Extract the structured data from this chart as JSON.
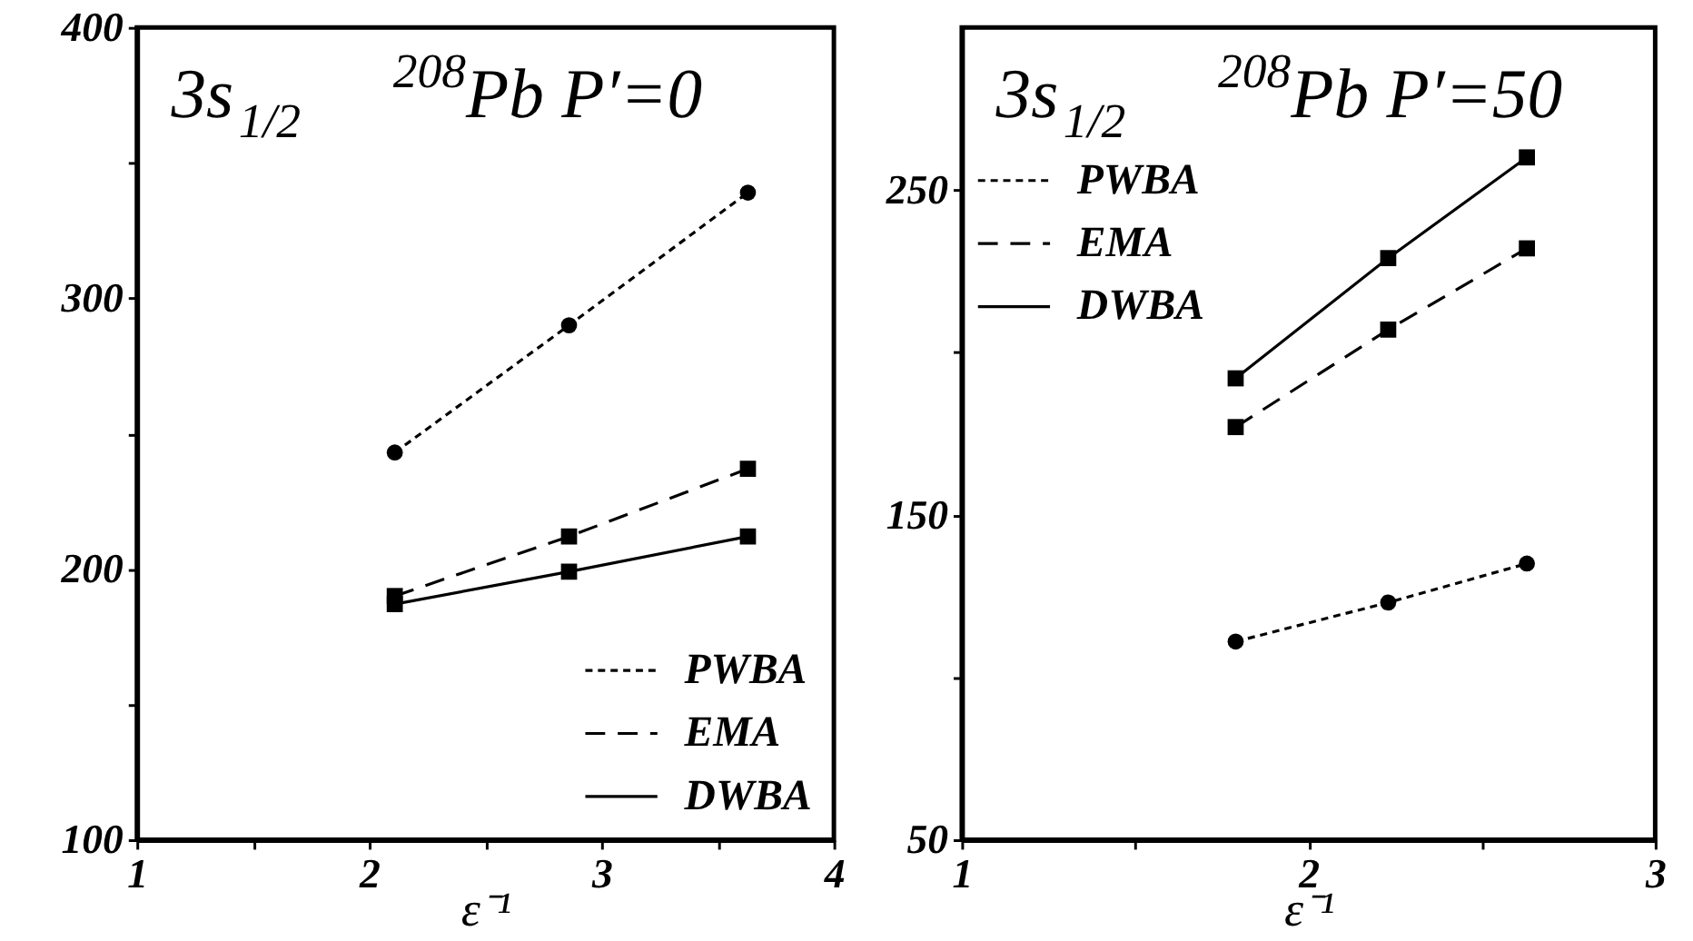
{
  "chart_data": [
    {
      "type": "line",
      "title": "3s$_{1/2}$ $^{208}$Pb P′=0",
      "xlabel": "ε⁻¹",
      "xlim": [
        1,
        4
      ],
      "xticks": [
        1,
        {
          "value": 1.5,
          "label": null
        },
        2,
        {
          "value": 2.5,
          "label": null
        },
        3,
        {
          "value": 3.5,
          "label": null
        },
        4
      ],
      "ylim": [
        100,
        400
      ],
      "yticks": [
        100,
        {
          "value": 150,
          "label": null
        },
        200,
        {
          "value": 250,
          "label": null
        },
        300,
        {
          "value": 350,
          "label": null
        },
        400
      ],
      "grid": false,
      "legend": "bottom right",
      "x": [
        2.11,
        2.86,
        3.63
      ],
      "series": [
        {
          "name": "PWBA",
          "color": "#000000",
          "marker": "circle",
          "line_style": "dotted",
          "values": [
            243,
            290,
            339
          ]
        },
        {
          "name": "EMA",
          "color": "#000000",
          "marker": "square",
          "line_style": "dashed",
          "values": [
            190,
            212,
            237
          ]
        },
        {
          "name": "DWBA",
          "color": "#000000",
          "marker": "square",
          "line_style": "solid",
          "values": [
            187,
            199,
            212
          ]
        }
      ]
    },
    {
      "type": "line",
      "title": "3s$_{1/2}$ $^{208}$Pb P′=50",
      "xlabel": "ε⁻¹",
      "xlim": [
        1,
        3
      ],
      "xticks": [
        1,
        {
          "value": 1.5,
          "label": null
        },
        2,
        {
          "value": 2.5,
          "label": null
        },
        3
      ],
      "ylim": [
        50,
        300
      ],
      "yticks": [
        50,
        {
          "value": 100,
          "label": null
        },
        150,
        {
          "value": 200,
          "label": null
        },
        250
      ],
      "grid": false,
      "legend": "top left",
      "x": [
        1.79,
        2.23,
        2.63
      ],
      "series": [
        {
          "name": "PWBA",
          "color": "#000000",
          "marker": "circle",
          "line_style": "dotted",
          "values": [
            111,
            123,
            135
          ]
        },
        {
          "name": "EMA",
          "color": "#000000",
          "marker": "square",
          "line_style": "dashed",
          "values": [
            177,
            207,
            232
          ]
        },
        {
          "name": "DWBA",
          "color": "#000000",
          "marker": "square",
          "line_style": "solid",
          "values": [
            192,
            229,
            260
          ]
        }
      ]
    }
  ]
}
